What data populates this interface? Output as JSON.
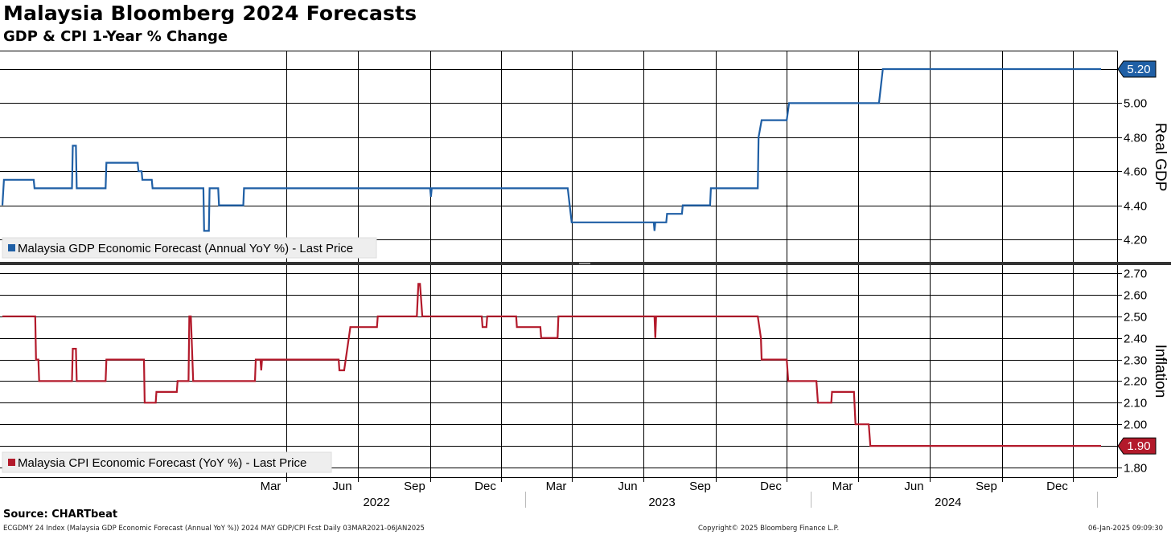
{
  "title": "Malaysia Bloomberg 2024 Forecasts",
  "subtitle": "GDP & CPI 1-Year % Change",
  "footer": {
    "source": "Source: CHARTbeat",
    "left_note": "ECGDMY 24 Index (Malaysia GDP Economic Forecast (Annual YoY %)) 2024 MAY GDP/CPI Fcst  Daily 03MAR2021-06JAN2025",
    "copyright": "Copyright© 2025 Bloomberg Finance L.P.",
    "timestamp": "06-Jan-2025 09:09:30"
  },
  "chart_data": {
    "type": "line",
    "x_axis": {
      "start": "2021-03-03",
      "end": "2025-01-06",
      "month_labels": [
        {
          "label": "Mar",
          "date": "2022-03-01"
        },
        {
          "label": "Jun",
          "date": "2022-06-01"
        },
        {
          "label": "Sep",
          "date": "2022-09-01"
        },
        {
          "label": "Dec",
          "date": "2022-12-01"
        },
        {
          "label": "Mar",
          "date": "2023-03-01"
        },
        {
          "label": "Jun",
          "date": "2023-06-01"
        },
        {
          "label": "Sep",
          "date": "2023-09-01"
        },
        {
          "label": "Dec",
          "date": "2023-12-01"
        },
        {
          "label": "Mar",
          "date": "2024-03-01"
        },
        {
          "label": "Jun",
          "date": "2024-06-01"
        },
        {
          "label": "Sep",
          "date": "2024-09-01"
        },
        {
          "label": "Dec",
          "date": "2024-12-01"
        }
      ],
      "year_labels": [
        {
          "label": "2022",
          "date": "2022-07-15"
        },
        {
          "label": "2023",
          "date": "2023-07-15"
        },
        {
          "label": "2024",
          "date": "2024-07-15"
        }
      ]
    },
    "panels": [
      {
        "id": "gdp",
        "ylabel": "Real GDP",
        "ylim": [
          4.1,
          5.3
        ],
        "yticks": [
          "4.20",
          "4.40",
          "4.60",
          "4.80",
          "5.00",
          "5.20"
        ],
        "series": {
          "name": "Malaysia GDP Economic Forecast (Annual YoY %) - Last Price",
          "color": "#1f5fa5",
          "last_value": "5.20",
          "points": [
            [
              "2021-03-03",
              4.4
            ],
            [
              "2021-03-05",
              4.55
            ],
            [
              "2021-04-12",
              4.55
            ],
            [
              "2021-04-13",
              4.5
            ],
            [
              "2021-05-31",
              4.5
            ],
            [
              "2021-06-01",
              4.75
            ],
            [
              "2021-06-05",
              4.75
            ],
            [
              "2021-06-06",
              4.5
            ],
            [
              "2021-07-13",
              4.5
            ],
            [
              "2021-07-14",
              4.65
            ],
            [
              "2021-08-23",
              4.65
            ],
            [
              "2021-08-24",
              4.6
            ],
            [
              "2021-08-28",
              4.6
            ],
            [
              "2021-08-29",
              4.55
            ],
            [
              "2021-09-10",
              4.55
            ],
            [
              "2021-09-11",
              4.5
            ],
            [
              "2021-11-15",
              4.5
            ],
            [
              "2021-11-16",
              4.25
            ],
            [
              "2021-11-22",
              4.25
            ],
            [
              "2021-11-23",
              4.5
            ],
            [
              "2021-12-04",
              4.5
            ],
            [
              "2021-12-05",
              4.4
            ],
            [
              "2022-01-05",
              4.4
            ],
            [
              "2022-01-06",
              4.5
            ],
            [
              "2022-09-01",
              4.5
            ],
            [
              "2022-09-02",
              4.45
            ],
            [
              "2022-09-03",
              4.5
            ],
            [
              "2023-02-24",
              4.5
            ],
            [
              "2023-03-01",
              4.3
            ],
            [
              "2023-06-14",
              4.3
            ],
            [
              "2023-06-15",
              4.25
            ],
            [
              "2023-06-16",
              4.3
            ],
            [
              "2023-06-30",
              4.3
            ],
            [
              "2023-07-01",
              4.35
            ],
            [
              "2023-07-20",
              4.35
            ],
            [
              "2023-07-21",
              4.4
            ],
            [
              "2023-08-25",
              4.4
            ],
            [
              "2023-08-26",
              4.5
            ],
            [
              "2023-10-25",
              4.5
            ],
            [
              "2023-10-26",
              4.8
            ],
            [
              "2023-10-30",
              4.9
            ],
            [
              "2023-12-01",
              4.9
            ],
            [
              "2023-12-04",
              5.0
            ],
            [
              "2024-03-28",
              5.0
            ],
            [
              "2024-04-02",
              5.2
            ],
            [
              "2025-01-06",
              5.2
            ]
          ]
        }
      },
      {
        "id": "cpi",
        "ylabel": "Inflation",
        "ylim": [
          1.75,
          2.75
        ],
        "yticks": [
          "1.80",
          "1.90",
          "2.00",
          "2.10",
          "2.20",
          "2.30",
          "2.40",
          "2.50",
          "2.60",
          "2.70"
        ],
        "series": {
          "name": "Malaysia CPI Economic Forecast (YoY %) - Last Price",
          "color": "#b31a2b",
          "last_value": "1.90",
          "points": [
            [
              "2021-03-03",
              2.5
            ],
            [
              "2021-04-14",
              2.5
            ],
            [
              "2021-04-15",
              2.3
            ],
            [
              "2021-04-18",
              2.3
            ],
            [
              "2021-04-19",
              2.2
            ],
            [
              "2021-05-31",
              2.2
            ],
            [
              "2021-06-01",
              2.35
            ],
            [
              "2021-06-05",
              2.35
            ],
            [
              "2021-06-06",
              2.2
            ],
            [
              "2021-07-13",
              2.2
            ],
            [
              "2021-07-14",
              2.3
            ],
            [
              "2021-08-31",
              2.3
            ],
            [
              "2021-09-01",
              2.1
            ],
            [
              "2021-09-15",
              2.1
            ],
            [
              "2021-09-16",
              2.15
            ],
            [
              "2021-10-12",
              2.15
            ],
            [
              "2021-10-13",
              2.2
            ],
            [
              "2021-10-27",
              2.2
            ],
            [
              "2021-10-28",
              2.5
            ],
            [
              "2021-10-30",
              2.5
            ],
            [
              "2021-11-02",
              2.2
            ],
            [
              "2022-01-20",
              2.2
            ],
            [
              "2022-01-21",
              2.3
            ],
            [
              "2022-01-27",
              2.3
            ],
            [
              "2022-01-28",
              2.25
            ],
            [
              "2022-01-29",
              2.3
            ],
            [
              "2022-05-07",
              2.3
            ],
            [
              "2022-05-08",
              2.25
            ],
            [
              "2022-05-14",
              2.25
            ],
            [
              "2022-05-18",
              2.35
            ],
            [
              "2022-05-22",
              2.45
            ],
            [
              "2022-06-25",
              2.45
            ],
            [
              "2022-06-26",
              2.5
            ],
            [
              "2022-08-15",
              2.5
            ],
            [
              "2022-08-17",
              2.65
            ],
            [
              "2022-08-19",
              2.65
            ],
            [
              "2022-08-22",
              2.5
            ],
            [
              "2022-11-06",
              2.5
            ],
            [
              "2022-11-07",
              2.45
            ],
            [
              "2022-11-12",
              2.45
            ],
            [
              "2022-11-13",
              2.5
            ],
            [
              "2022-12-20",
              2.5
            ],
            [
              "2022-12-21",
              2.45
            ],
            [
              "2023-01-20",
              2.45
            ],
            [
              "2023-01-21",
              2.4
            ],
            [
              "2023-02-11",
              2.4
            ],
            [
              "2023-02-12",
              2.5
            ],
            [
              "2023-06-15",
              2.5
            ],
            [
              "2023-06-16",
              2.4
            ],
            [
              "2023-06-17",
              2.5
            ],
            [
              "2023-10-25",
              2.5
            ],
            [
              "2023-10-29",
              2.4
            ],
            [
              "2023-10-30",
              2.3
            ],
            [
              "2023-12-01",
              2.3
            ],
            [
              "2023-12-03",
              2.2
            ],
            [
              "2024-01-08",
              2.2
            ],
            [
              "2024-01-10",
              2.1
            ],
            [
              "2024-01-27",
              2.1
            ],
            [
              "2024-01-28",
              2.15
            ],
            [
              "2024-02-25",
              2.15
            ],
            [
              "2024-02-27",
              2.0
            ],
            [
              "2024-03-15",
              2.0
            ],
            [
              "2024-03-17",
              1.9
            ],
            [
              "2025-01-06",
              1.9
            ]
          ]
        }
      }
    ]
  }
}
